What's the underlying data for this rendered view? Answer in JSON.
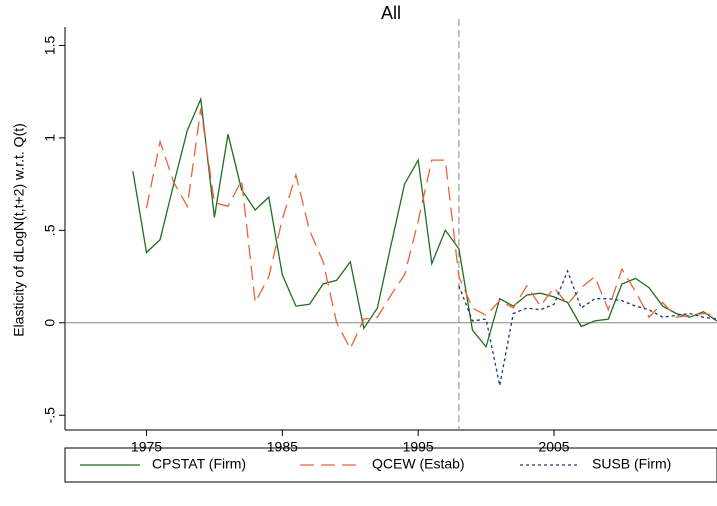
{
  "chart_data": {
    "type": "line",
    "title": "All",
    "y_label": "Elasticity of dLogN(t,t+2) w.r.t. Q(t)",
    "x": [
      1974,
      1975,
      1976,
      1977,
      1978,
      1979,
      1980,
      1981,
      1982,
      1983,
      1984,
      1985,
      1986,
      1987,
      1988,
      1989,
      1990,
      1991,
      1992,
      1993,
      1994,
      1995,
      1996,
      1997,
      1998,
      1999,
      2000,
      2001,
      2002,
      2003,
      2004,
      2005,
      2006,
      2007,
      2008,
      2009,
      2010,
      2011,
      2012,
      2013,
      2014,
      2015,
      2016,
      2017
    ],
    "series": [
      {
        "name": "CPSTAT (Firm)",
        "color": "#1f6e1f",
        "dash": "none",
        "values": [
          0.82,
          0.38,
          0.45,
          0.75,
          1.04,
          1.21,
          0.57,
          1.02,
          0.72,
          0.61,
          0.68,
          0.26,
          0.09,
          0.1,
          0.21,
          0.23,
          0.33,
          -0.03,
          0.08,
          0.42,
          0.75,
          0.88,
          0.32,
          0.5,
          0.4,
          -0.04,
          -0.13,
          0.13,
          0.09,
          0.15,
          0.16,
          0.14,
          0.11,
          -0.02,
          0.01,
          0.02,
          0.21,
          0.24,
          0.19,
          0.09,
          0.05,
          0.03,
          0.06,
          0.01
        ]
      },
      {
        "name": "QCEW (Estab)",
        "color": "#e8643a",
        "dash": "14 7",
        "values": [
          null,
          0.62,
          0.98,
          0.76,
          0.63,
          1.16,
          0.65,
          0.63,
          0.77,
          0.11,
          0.25,
          0.56,
          0.8,
          0.5,
          0.33,
          0.0,
          -0.14,
          0.02,
          0.03,
          0.15,
          0.26,
          0.55,
          0.88,
          0.88,
          0.25,
          0.08,
          0.04,
          0.12,
          0.08,
          0.2,
          0.09,
          0.19,
          0.1,
          0.19,
          0.25,
          0.07,
          0.29,
          0.17,
          0.03,
          0.11,
          0.03,
          0.04,
          0.05,
          0.04
        ]
      },
      {
        "name": "SUSB (Firm)",
        "color": "#1a3a6e",
        "dash": "3 3",
        "values": [
          null,
          null,
          null,
          null,
          null,
          null,
          null,
          null,
          null,
          null,
          null,
          null,
          null,
          null,
          null,
          null,
          null,
          null,
          null,
          null,
          null,
          null,
          null,
          null,
          0.2,
          0.01,
          0.02,
          -0.34,
          0.05,
          0.08,
          0.07,
          0.1,
          0.28,
          0.08,
          0.13,
          0.13,
          0.12,
          0.09,
          0.07,
          0.03,
          0.04,
          0.05,
          0.03,
          0.02
        ]
      }
    ],
    "xlim": [
      1969,
      2017
    ],
    "xticks": [
      1975,
      1985,
      1995,
      2005
    ],
    "ylim": [
      -0.58,
      1.6
    ],
    "yticks": [
      {
        "value": -0.5,
        "label": "-.5"
      },
      0,
      {
        "value": 0.5,
        "label": ".5"
      },
      1,
      1.5
    ],
    "reference_line_x": 1998,
    "reference_line_y": 0
  }
}
